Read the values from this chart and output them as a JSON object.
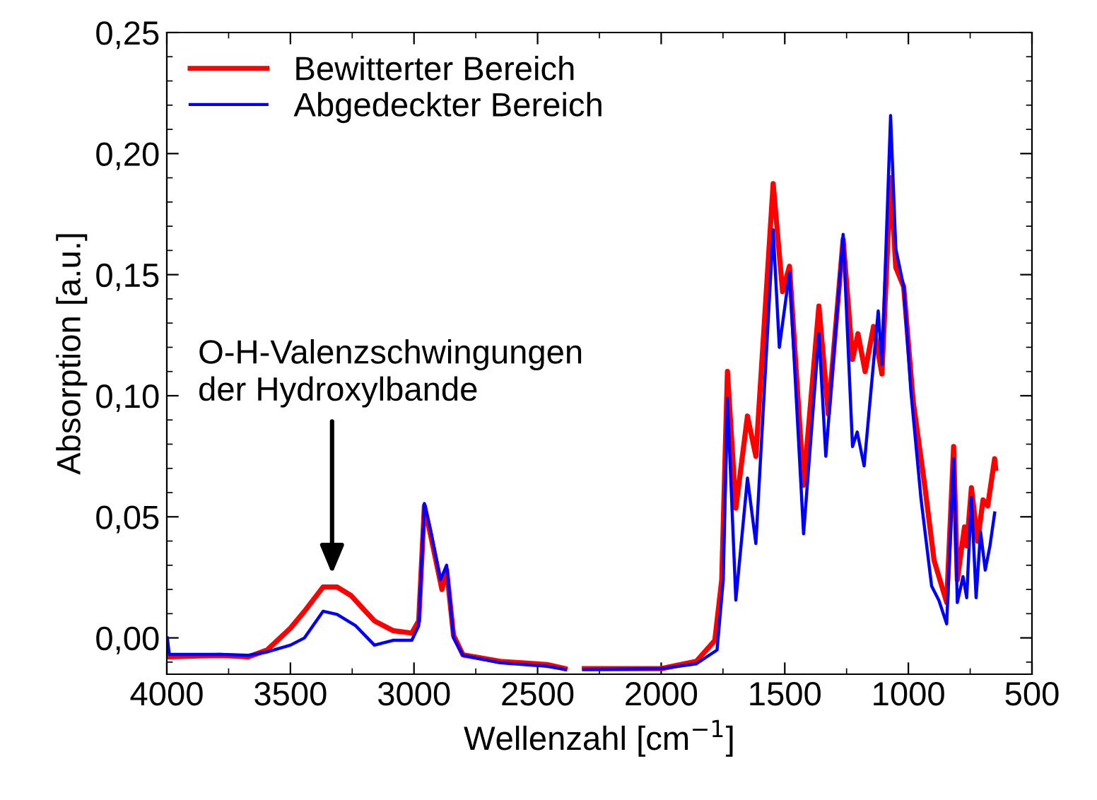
{
  "chart_data": {
    "type": "line",
    "xlabel": "Wellenzahl [cm$^{−1}$]",
    "ylabel": "Absorption [a.u.]",
    "xlim": [
      4000,
      500
    ],
    "ylim": [
      -0.015,
      0.25
    ],
    "xticks": [
      4000,
      3500,
      3000,
      2500,
      2000,
      1500,
      1000,
      500
    ],
    "yticks": [
      {
        "value": 0,
        "label": "0,00"
      },
      {
        "value": 0.05,
        "label": "0,05"
      },
      {
        "value": 0.1,
        "label": "0,10"
      },
      {
        "value": 0.15,
        "label": "0,15"
      },
      {
        "value": 0.2,
        "label": "0,20"
      },
      {
        "value": 0.25,
        "label": "0,25"
      }
    ],
    "grid": false,
    "legend": "top left",
    "marker": "none",
    "line_style": "solid",
    "annotations": [
      "O-H-Valenzschwingungen\nder Hydroxylbande"
    ],
    "series": [
      {
        "name": "Bewitterter Bereich",
        "color": "#ff0000",
        "x": [
          3998,
          3783,
          3670,
          3594,
          3500,
          3443,
          3368,
          3311,
          3255,
          3160,
          3085,
          3009,
          2981,
          2958,
          2934,
          2887,
          2868,
          2840,
          2802,
          2651,
          2462,
          2389,
          2360,
          2311,
          2000,
          1858,
          1783,
          1755,
          1732,
          1698,
          1651,
          1617,
          1547,
          1509,
          1481,
          1424,
          1362,
          1324,
          1264,
          1226,
          1204,
          1175,
          1141,
          1107,
          1072,
          1051,
          1019,
          981,
          934,
          896,
          845,
          817,
          802,
          773,
          764,
          745,
          720,
          698,
          679,
          651,
          647
        ],
        "values": [
          -0.0078,
          -0.0072,
          -0.0078,
          -0.005,
          0.004,
          0.011,
          0.021,
          0.021,
          0.0175,
          0.007,
          0.003,
          0.002,
          0.007,
          0.0545,
          0.043,
          0.02,
          0.028,
          0.001,
          -0.007,
          -0.0097,
          -0.011,
          -0.0127,
          null,
          -0.0127,
          -0.0127,
          -0.0097,
          -0.001,
          0.024,
          0.11,
          0.0536,
          0.0916,
          0.075,
          0.1876,
          0.143,
          0.1535,
          0.063,
          0.137,
          0.0925,
          0.1646,
          0.115,
          0.1256,
          0.11,
          0.1286,
          0.109,
          0.19,
          0.153,
          0.145,
          0.098,
          0.063,
          0.032,
          0.0146,
          0.079,
          0.024,
          0.0458,
          0.038,
          0.062,
          0.04,
          0.057,
          0.0545,
          0.074,
          0.07
        ]
      },
      {
        "name": "Abgedeckter Bereich",
        "color": "#0000ff",
        "x": [
          3998,
          3990,
          3783,
          3670,
          3594,
          3500,
          3443,
          3368,
          3311,
          3236,
          3160,
          3085,
          3009,
          2981,
          2958,
          2934,
          2893,
          2868,
          2840,
          2802,
          2651,
          2462,
          2389,
          2360,
          2311,
          2000,
          1858,
          1774,
          1749,
          1732,
          1698,
          1651,
          1617,
          1547,
          1522,
          1481,
          1424,
          1362,
          1334,
          1264,
          1226,
          1207,
          1179,
          1122,
          1107,
          1072,
          1051,
          1019,
          990,
          949,
          906,
          877,
          845,
          817,
          802,
          779,
          764,
          745,
          726,
          708,
          689,
          670,
          651
        ],
        "values": [
          0.0,
          -0.0068,
          -0.0068,
          -0.0072,
          -0.0058,
          -0.003,
          0.0,
          0.011,
          0.0097,
          0.005,
          -0.003,
          -0.001,
          -0.001,
          0.005,
          0.0555,
          0.045,
          0.024,
          0.03,
          0.0,
          -0.0072,
          -0.0103,
          -0.0117,
          -0.013,
          null,
          -0.013,
          -0.0127,
          -0.0107,
          -0.005,
          0.024,
          0.099,
          0.0156,
          0.066,
          0.039,
          0.1685,
          0.12,
          0.151,
          0.043,
          0.1256,
          0.075,
          0.1666,
          0.079,
          0.085,
          0.071,
          0.135,
          0.113,
          0.2157,
          0.1607,
          0.145,
          0.102,
          0.0575,
          0.0214,
          0.0156,
          0.0058,
          0.074,
          0.0146,
          0.0253,
          0.0166,
          0.058,
          0.0166,
          0.0438,
          0.028,
          0.038,
          0.0516
        ]
      }
    ]
  }
}
